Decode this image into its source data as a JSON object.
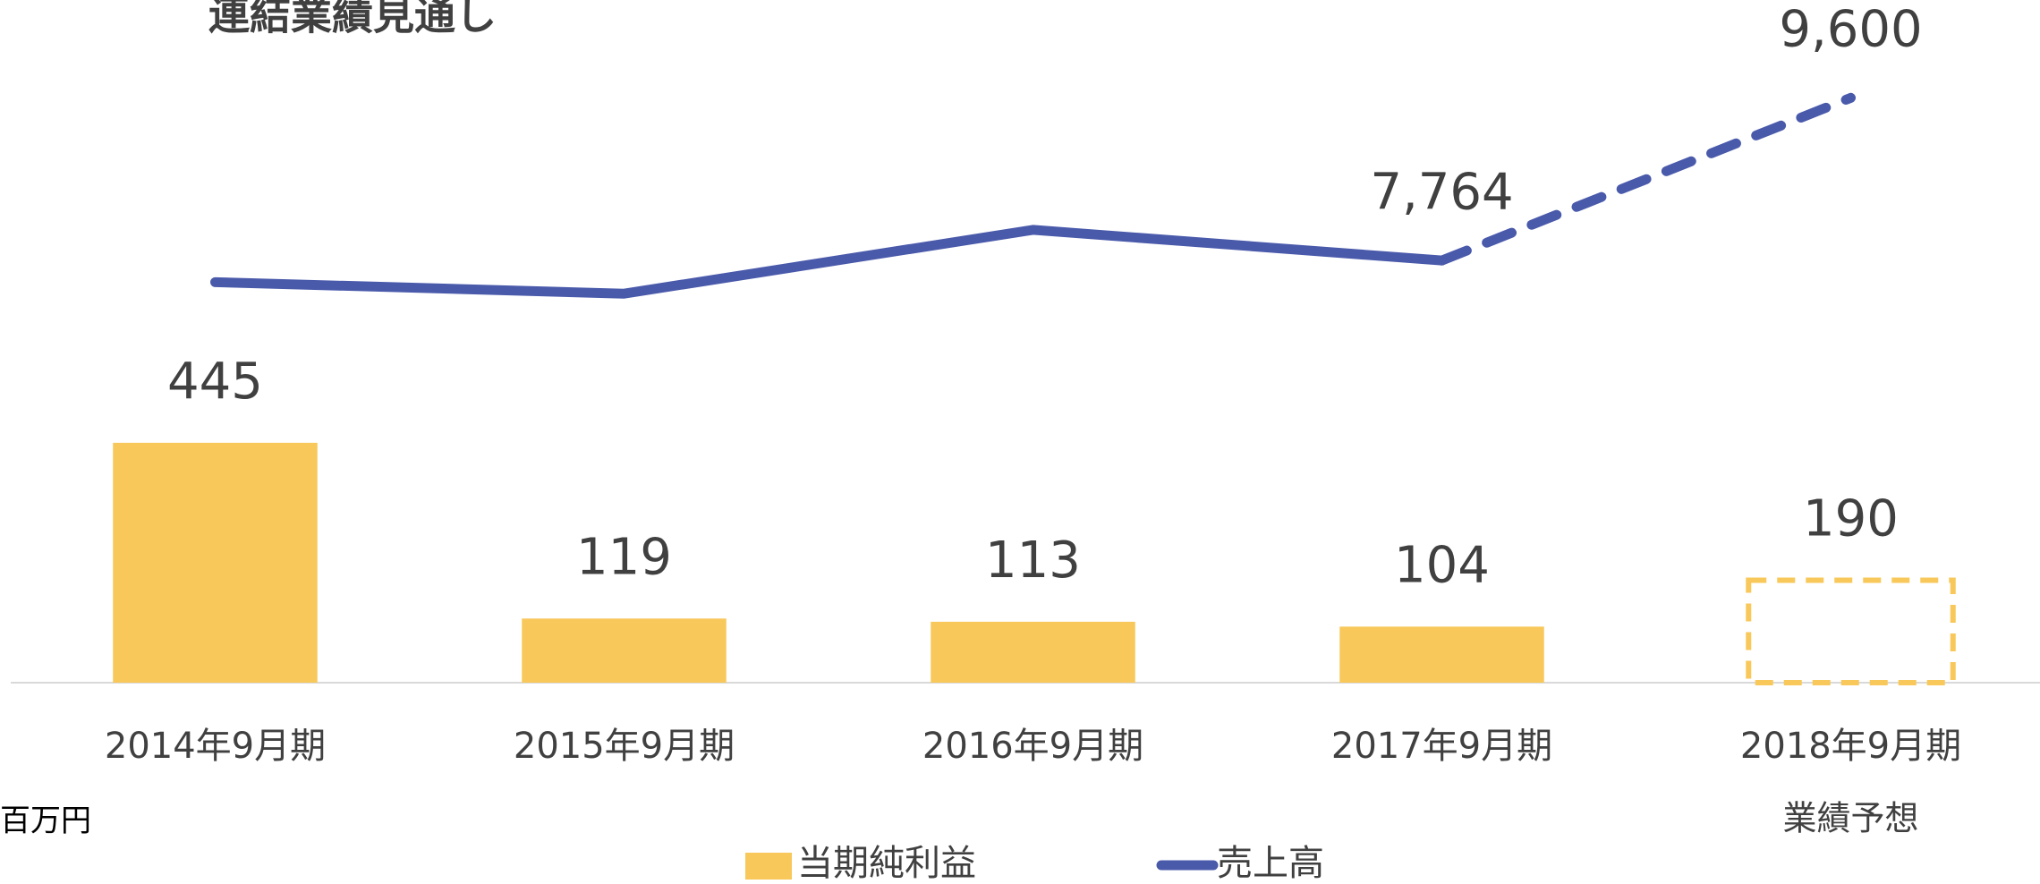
{
  "chart_data": {
    "type": "combo",
    "title": "連結業績見通し",
    "unit_label": "百万円",
    "categories": [
      "2014年9月期",
      "2015年9月期",
      "2016年9月期",
      "2017年9月期",
      "2018年9月期"
    ],
    "forecast_label": "業績予想",
    "forecast_index": 4,
    "series": [
      {
        "name": "当期純利益",
        "type": "bar",
        "color": "#f8c85a",
        "values": [
          445,
          119,
          113,
          104,
          190
        ]
      },
      {
        "name": "売上高",
        "type": "line",
        "axis": "y2",
        "color": "#4a5aab",
        "values": [
          7520,
          7390,
          8110,
          7764,
          9600
        ],
        "value_labels": [
          null,
          null,
          null,
          "7,764",
          "9,600"
        ]
      }
    ],
    "ylim": [
      0,
      1200
    ],
    "y2lim": [
      3000,
      10300
    ],
    "grid": false
  }
}
